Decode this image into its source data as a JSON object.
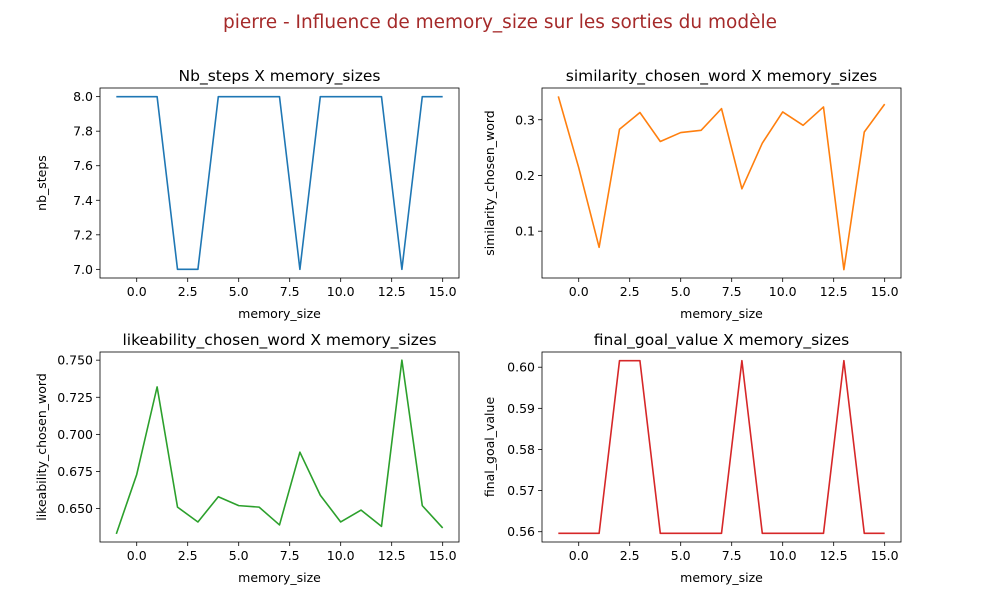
{
  "suptitle": "pierre - Influence de memory_size sur les sorties du modèle",
  "suptitle_color": "#a52a2a",
  "chart_data": [
    {
      "type": "line",
      "title": "Nb_steps X memory_sizes",
      "xlabel": "memory_size",
      "ylabel": "nb_steps",
      "color": "#1f77b4",
      "x": [
        -1,
        0,
        1,
        2,
        3,
        4,
        5,
        6,
        7,
        8,
        9,
        10,
        11,
        12,
        13,
        14,
        15
      ],
      "y": [
        8,
        8,
        8,
        7,
        7,
        8,
        8,
        8,
        8,
        7,
        8,
        8,
        8,
        8,
        7,
        8,
        8
      ],
      "xlim": [
        -1.8,
        15.8
      ],
      "ylim": [
        6.95,
        8.05
      ],
      "xticks": [
        0,
        2.5,
        5,
        7.5,
        10,
        12.5,
        15
      ],
      "xtick_labels": [
        "0.0",
        "2.5",
        "5.0",
        "7.5",
        "10.0",
        "12.5",
        "15.0"
      ],
      "yticks": [
        7.0,
        7.2,
        7.4,
        7.6,
        7.8,
        8.0
      ],
      "ytick_labels": [
        "7.0",
        "7.2",
        "7.4",
        "7.6",
        "7.8",
        "8.0"
      ]
    },
    {
      "type": "line",
      "title": "similarity_chosen_word X memory_sizes",
      "xlabel": "memory_size",
      "ylabel": "similarity_chosen_word",
      "color": "#ff7f0e",
      "x": [
        -1,
        0,
        1,
        2,
        3,
        4,
        5,
        6,
        7,
        8,
        9,
        10,
        11,
        12,
        13,
        14,
        15
      ],
      "y": [
        0.342,
        0.214,
        0.071,
        0.283,
        0.313,
        0.261,
        0.277,
        0.281,
        0.32,
        0.176,
        0.258,
        0.314,
        0.29,
        0.323,
        0.031,
        0.278,
        0.328
      ],
      "xlim": [
        -1.8,
        15.8
      ],
      "ylim": [
        0.016,
        0.357
      ],
      "xticks": [
        0,
        2.5,
        5,
        7.5,
        10,
        12.5,
        15
      ],
      "xtick_labels": [
        "0.0",
        "2.5",
        "5.0",
        "7.5",
        "10.0",
        "12.5",
        "15.0"
      ],
      "yticks": [
        0.1,
        0.2,
        0.3
      ],
      "ytick_labels": [
        "0.1",
        "0.2",
        "0.3"
      ]
    },
    {
      "type": "line",
      "title": "likeability_chosen_word X memory_sizes",
      "xlabel": "memory_size",
      "ylabel": "likeability_chosen_word",
      "color": "#2ca02c",
      "x": [
        -1,
        0,
        1,
        2,
        3,
        4,
        5,
        6,
        7,
        8,
        9,
        10,
        11,
        12,
        13,
        14,
        15
      ],
      "y": [
        0.633,
        0.673,
        0.732,
        0.651,
        0.641,
        0.658,
        0.652,
        0.651,
        0.639,
        0.688,
        0.659,
        0.641,
        0.649,
        0.638,
        0.75,
        0.652,
        0.637
      ],
      "xlim": [
        -1.8,
        15.8
      ],
      "ylim": [
        0.6275,
        0.7555
      ],
      "xticks": [
        0,
        2.5,
        5,
        7.5,
        10,
        12.5,
        15
      ],
      "xtick_labels": [
        "0.0",
        "2.5",
        "5.0",
        "7.5",
        "10.0",
        "12.5",
        "15.0"
      ],
      "yticks": [
        0.65,
        0.675,
        0.7,
        0.725,
        0.75
      ],
      "ytick_labels": [
        "0.650",
        "0.675",
        "0.700",
        "0.725",
        "0.750"
      ]
    },
    {
      "type": "line",
      "title": "final_goal_value X memory_sizes",
      "xlabel": "memory_size",
      "ylabel": "final_goal_value",
      "color": "#d62728",
      "x": [
        -1,
        0,
        1,
        2,
        3,
        4,
        5,
        6,
        7,
        8,
        9,
        10,
        11,
        12,
        13,
        14,
        15
      ],
      "y": [
        0.5596,
        0.5596,
        0.5596,
        0.6016,
        0.6016,
        0.5596,
        0.5596,
        0.5596,
        0.5596,
        0.6016,
        0.5596,
        0.5596,
        0.5596,
        0.5596,
        0.6016,
        0.5596,
        0.5596
      ],
      "xlim": [
        -1.8,
        15.8
      ],
      "ylim": [
        0.5575,
        0.6037
      ],
      "xticks": [
        0,
        2.5,
        5,
        7.5,
        10,
        12.5,
        15
      ],
      "xtick_labels": [
        "0.0",
        "2.5",
        "5.0",
        "7.5",
        "10.0",
        "12.5",
        "15.0"
      ],
      "yticks": [
        0.56,
        0.57,
        0.58,
        0.59,
        0.6
      ],
      "ytick_labels": [
        "0.56",
        "0.57",
        "0.58",
        "0.59",
        "0.60"
      ]
    }
  ]
}
